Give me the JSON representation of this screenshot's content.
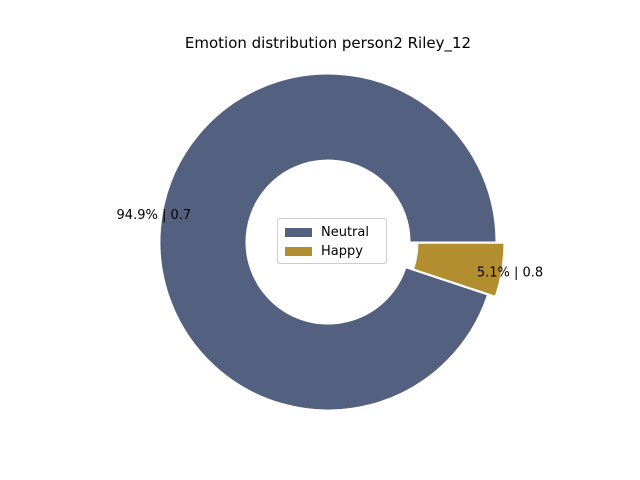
{
  "chart_data": {
    "type": "pie",
    "title": "Emotion distribution person2 Riley_12",
    "donut": true,
    "slices": [
      {
        "label": "Neutral",
        "percent": 94.9,
        "value": 0.7,
        "text": "94.9% | 0.7",
        "color": "#54607f",
        "explode": false
      },
      {
        "label": "Happy",
        "percent": 5.1,
        "value": 0.8,
        "text": "5.1% | 0.8",
        "color": "#b28e2f",
        "explode": true
      }
    ],
    "legend": {
      "placement": "center",
      "entries": [
        "Neutral",
        "Happy"
      ]
    }
  }
}
